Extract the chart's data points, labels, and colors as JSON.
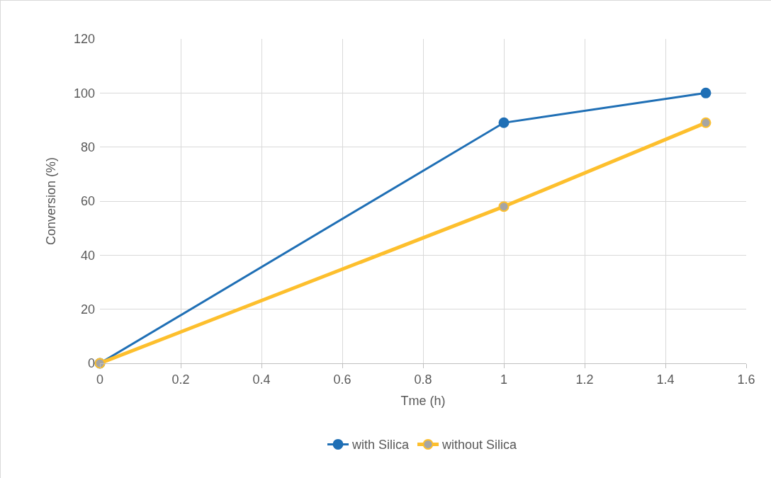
{
  "chart_data": {
    "type": "line",
    "xlabel": "Tme (h)",
    "ylabel": "Conversion (%)",
    "x": [
      0,
      1,
      1.5
    ],
    "series": [
      {
        "name": "with Silica",
        "color": "#1f6fb5",
        "values": [
          0,
          89,
          100
        ]
      },
      {
        "name": "without Silica",
        "color": "#fdbf2d",
        "values": [
          0,
          58,
          89
        ]
      }
    ],
    "xlim": [
      0,
      1.6
    ],
    "xticks": [
      0,
      0.2,
      0.4,
      0.6,
      0.8,
      1,
      1.2,
      1.4,
      1.6
    ],
    "ylim": [
      0,
      120
    ],
    "yticks": [
      0,
      20,
      40,
      60,
      80,
      100,
      120
    ],
    "grid": true,
    "legend": "bottom",
    "marker": "circle",
    "line_style": "solid"
  }
}
